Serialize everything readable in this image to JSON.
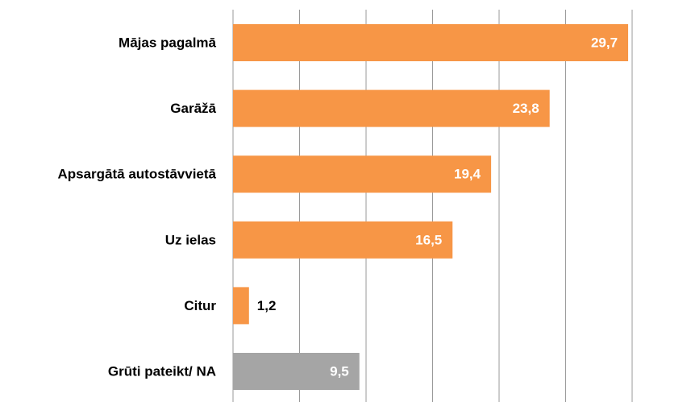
{
  "chart_data": {
    "type": "barh",
    "categories": [
      "Mājas pagalmā",
      "Garāžā",
      "Apsargātā autostāvvietā",
      "Uz ielas",
      "Citur",
      "Grūti pateikt/ NA"
    ],
    "values": [
      29.7,
      23.8,
      19.4,
      16.5,
      1.2,
      9.5
    ],
    "value_labels": [
      "29,7",
      "23,8",
      "19,4",
      "16,5",
      "1,2",
      "9,5"
    ],
    "colors": [
      "#f79646",
      "#f79646",
      "#f79646",
      "#f79646",
      "#f79646",
      "#a5a5a5"
    ],
    "xlim": [
      0,
      30
    ],
    "xticks": [
      0,
      5,
      10,
      15,
      20,
      25,
      30
    ],
    "grid": true
  }
}
